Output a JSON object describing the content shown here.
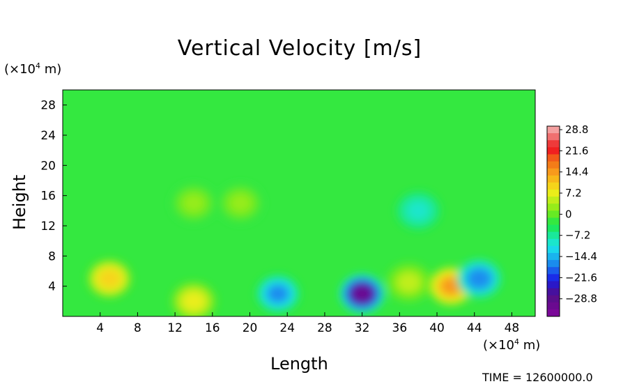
{
  "chart_data": {
    "type": "heatmap",
    "title": "Vertical Velocity [m/s]",
    "xlabel": "Length",
    "ylabel": "Height",
    "x_unit": "(×10⁴ m)",
    "y_unit": "(×10⁴ m)",
    "xlim": [
      0,
      50.5
    ],
    "ylim": [
      0,
      30
    ],
    "x_ticks": [
      "4",
      "8",
      "12",
      "16",
      "20",
      "24",
      "28",
      "32",
      "36",
      "40",
      "44",
      "48"
    ],
    "y_ticks": [
      "4",
      "8",
      "12",
      "16",
      "20",
      "24",
      "28"
    ],
    "colorbar": {
      "ticks": [
        "28.8",
        "21.6",
        "14.4",
        "7.2",
        "0",
        "−7.2",
        "−14.4",
        "−21.6",
        "−28.8"
      ],
      "range": [
        -28.8,
        28.8
      ],
      "levels_per_label": 3,
      "colors_top_to_bottom": [
        "#f4a0a0",
        "#f07070",
        "#ee3a3a",
        "#f02020",
        "#f25a1a",
        "#f47c18",
        "#f89a1c",
        "#f8b81a",
        "#f6d41a",
        "#eaee1a",
        "#c0ee1a",
        "#96ec1a",
        "#66ea24",
        "#34e840",
        "#1ce860",
        "#1ae89a",
        "#1ae6cc",
        "#1ad8ec",
        "#1ab4ee",
        "#1a8cee",
        "#1a5cec",
        "#1a2ce8",
        "#2a18c8",
        "#46109e",
        "#5a0e8c",
        "#6a0a90",
        "#7a0898"
      ]
    },
    "features": [
      {
        "x": 5,
        "y": 5,
        "value": 12
      },
      {
        "x": 14,
        "y": 2,
        "value": 9
      },
      {
        "x": 41.5,
        "y": 4,
        "value": 16
      },
      {
        "x": 32,
        "y": 3,
        "value": -27
      },
      {
        "x": 44.5,
        "y": 5,
        "value": -14
      },
      {
        "x": 23,
        "y": 3,
        "value": -13
      },
      {
        "x": 37,
        "y": 4.5,
        "value": 6
      },
      {
        "x": 19,
        "y": 15,
        "value": 4
      },
      {
        "x": 14,
        "y": 15,
        "value": 4
      },
      {
        "x": 38,
        "y": 14,
        "value": -7
      }
    ],
    "background_value": 0,
    "annotation": "TIME = 12600000.0"
  }
}
